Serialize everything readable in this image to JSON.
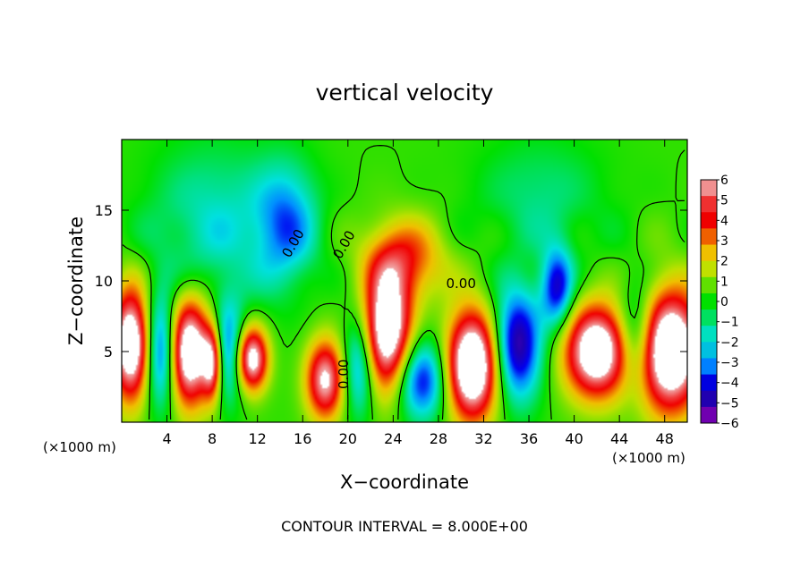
{
  "chart_data": {
    "type": "heatmap",
    "title": "vertical velocity",
    "xlabel": "X−coordinate",
    "ylabel": "Z−coordinate",
    "x_unit_left": "(×1000 m)",
    "x_unit_right": "(×1000 m)",
    "footer": "CONTOUR INTERVAL = 8.000E+00",
    "xlim": [
      0,
      50
    ],
    "ylim": [
      0,
      20
    ],
    "x_ticks": [
      4,
      8,
      12,
      16,
      20,
      24,
      28,
      32,
      36,
      40,
      44,
      48
    ],
    "x_tick_labels": [
      "4",
      "8",
      "12",
      "16",
      "20",
      "24",
      "28",
      "32",
      "36",
      "40",
      "44",
      "48"
    ],
    "y_ticks": [
      5,
      10,
      15
    ],
    "y_tick_labels": [
      "5",
      "10",
      "15"
    ],
    "contour_labels": [
      "0.00",
      "0.00",
      "0.00",
      "0.00"
    ],
    "colorbar": {
      "levels": [
        6,
        5,
        4,
        3,
        2,
        1,
        0,
        -1,
        -2,
        -3,
        -4,
        -5,
        -6
      ],
      "labels": [
        "6",
        "5",
        "4",
        "3",
        "2",
        "1",
        "0",
        "−1",
        "−2",
        "−3",
        "−4",
        "−5",
        "−6"
      ],
      "colors": [
        "#f09090",
        "#f03030",
        "#f00000",
        "#f06000",
        "#f0c000",
        "#c0e000",
        "#60e000",
        "#00e000",
        "#00e060",
        "#00e0c0",
        "#00c0e0",
        "#0080ff",
        "#0000e0",
        "#2000b0",
        "#7000b0"
      ]
    },
    "features": [
      {
        "x": 0.8,
        "z": 5.5,
        "sign": 1,
        "amp": 9,
        "sx": 1.2,
        "sz": 2.8
      },
      {
        "x": 6.0,
        "z": 5.0,
        "sign": 1,
        "amp": 9,
        "sx": 1.3,
        "sz": 2.7
      },
      {
        "x": 8.0,
        "z": 4.2,
        "sign": 1,
        "amp": 6,
        "sx": 0.6,
        "sz": 1.8
      },
      {
        "x": 11.5,
        "z": 4.5,
        "sign": 1,
        "amp": 8,
        "sx": 1.0,
        "sz": 1.6
      },
      {
        "x": 18.0,
        "z": 3.0,
        "sign": 1,
        "amp": 7,
        "sx": 1.2,
        "sz": 2.0
      },
      {
        "x": 23.5,
        "z": 6.5,
        "sign": 1,
        "amp": 9,
        "sx": 1.5,
        "sz": 3.0
      },
      {
        "x": 25.0,
        "z": 11.5,
        "sign": 1,
        "amp": 4,
        "sx": 2.5,
        "sz": 2.0
      },
      {
        "x": 31.0,
        "z": 4.0,
        "sign": 1,
        "amp": 10,
        "sx": 1.6,
        "sz": 2.7
      },
      {
        "x": 42.0,
        "z": 5.0,
        "sign": 1,
        "amp": 9,
        "sx": 2.0,
        "sz": 2.3
      },
      {
        "x": 48.5,
        "z": 5.0,
        "sign": 1,
        "amp": 10,
        "sx": 2.0,
        "sz": 3.0
      },
      {
        "x": 3.5,
        "z": 5.0,
        "sign": -1,
        "amp": 5,
        "sx": 1.0,
        "sz": 2.8
      },
      {
        "x": 9.5,
        "z": 5.0,
        "sign": -1,
        "amp": 4,
        "sx": 1.0,
        "sz": 2.5
      },
      {
        "x": 14.5,
        "z": 14.0,
        "sign": -1,
        "amp": 3.5,
        "sx": 2.0,
        "sz": 3.0
      },
      {
        "x": 21.0,
        "z": 4.0,
        "sign": -1,
        "amp": 4,
        "sx": 1.0,
        "sz": 2.5
      },
      {
        "x": 26.5,
        "z": 3.0,
        "sign": -1,
        "amp": 5,
        "sx": 1.6,
        "sz": 2.0
      },
      {
        "x": 35.0,
        "z": 5.5,
        "sign": -1,
        "amp": 6,
        "sx": 1.5,
        "sz": 2.8
      },
      {
        "x": 38.5,
        "z": 9.5,
        "sign": -1,
        "amp": 5,
        "sx": 1.0,
        "sz": 2.0
      },
      {
        "x": 45.5,
        "z": 6.0,
        "sign": -1,
        "amp": 4,
        "sx": 1.2,
        "sz": 2.5
      },
      {
        "x": 8.0,
        "z": 14.0,
        "sign": -1,
        "amp": 2.2,
        "sx": 4.0,
        "sz": 4.0
      },
      {
        "x": 37.0,
        "z": 16.0,
        "sign": -1,
        "amp": 1.5,
        "sx": 4.0,
        "sz": 3.0
      }
    ]
  }
}
